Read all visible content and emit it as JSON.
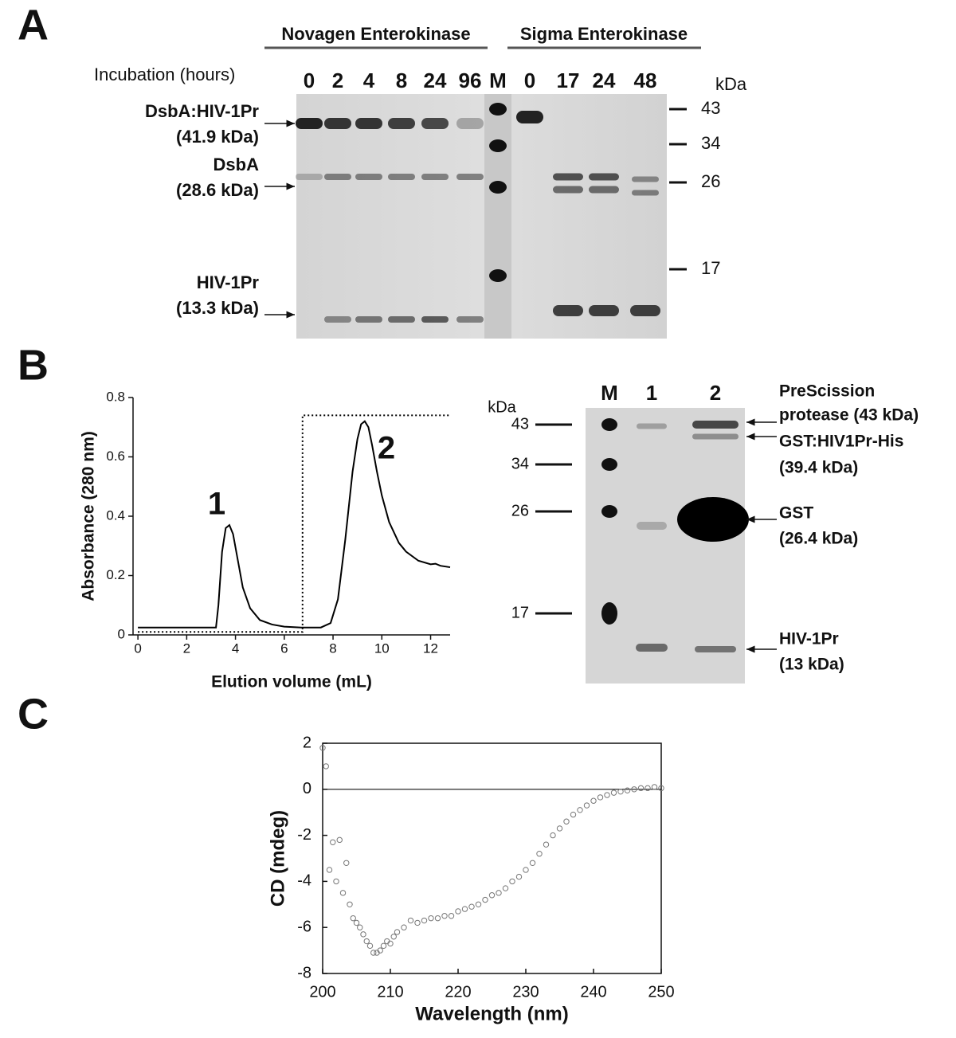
{
  "panel_a": {
    "letter": "A",
    "groups": [
      "Novagen Enterokinase",
      "Sigma Enterokinase"
    ],
    "incubation_label": "Incubation (hours)",
    "lanes": [
      "0",
      "2",
      "4",
      "8",
      "24",
      "96",
      "M",
      "0",
      "17",
      "24",
      "48"
    ],
    "kda": "kDa",
    "markers": [
      "43",
      "34",
      "26",
      "17"
    ],
    "bands": [
      {
        "name": "DsbA:HIV-1Pr",
        "size": "(41.9 kDa)"
      },
      {
        "name": "DsbA",
        "size": "(28.6 kDa)"
      },
      {
        "name": "HIV-1Pr",
        "size": "(13.3 kDa)"
      }
    ]
  },
  "panel_b": {
    "letter": "B",
    "gel": {
      "kda": "kDa",
      "lanes": [
        "M",
        "1",
        "2"
      ],
      "markers": [
        "43",
        "34",
        "26",
        "17"
      ],
      "labels": [
        "PreScission",
        "protease (43 kDa)",
        "GST:HIV1Pr-His",
        "(39.4 kDa)",
        "GST",
        "(26.4 kDa)",
        "HIV-1Pr",
        "(13 kDa)"
      ]
    }
  },
  "panel_c": {
    "letter": "C"
  },
  "chart_data": [
    {
      "type": "line",
      "x_label": "Elution volume (mL)",
      "y_label": "Absorbance (280 nm)",
      "annotations": [
        "1",
        "2"
      ],
      "xlim": [
        -0.2,
        12.8
      ],
      "ylim": [
        0,
        0.8
      ],
      "xticks": [
        0,
        2,
        4,
        6,
        8,
        10,
        12
      ],
      "yticks": [
        0,
        0.2,
        0.4,
        0.6,
        0.8
      ],
      "series": [
        {
          "color": "#000000",
          "style": "solid",
          "x": [
            0,
            3.2,
            3.3,
            3.45,
            3.6,
            3.75,
            3.9,
            4.1,
            4.3,
            4.6,
            5.0,
            5.5,
            6.0,
            6.7,
            7.5,
            7.9,
            8.2,
            8.5,
            8.8,
            9.0,
            9.15,
            9.3,
            9.45,
            9.6,
            9.8,
            10.0,
            10.3,
            10.7,
            11.0,
            11.5,
            12.0,
            12.2,
            12.4,
            12.8
          ],
          "values": [
            0.025,
            0.025,
            0.1,
            0.28,
            0.36,
            0.37,
            0.34,
            0.25,
            0.16,
            0.09,
            0.05,
            0.035,
            0.028,
            0.025,
            0.025,
            0.04,
            0.12,
            0.32,
            0.55,
            0.66,
            0.71,
            0.72,
            0.7,
            0.64,
            0.55,
            0.47,
            0.38,
            0.31,
            0.28,
            0.25,
            0.238,
            0.24,
            0.233,
            0.228
          ]
        },
        {
          "color": "#000000",
          "style": "dotted",
          "x": [
            0,
            6.75,
            6.75,
            12.8
          ],
          "values": [
            0.01,
            0.01,
            0.74,
            0.74
          ]
        }
      ]
    },
    {
      "type": "scatter",
      "x_label": "Wavelength (nm)",
      "y_label": "CD (mdeg)",
      "xlim": [
        200,
        250
      ],
      "ylim": [
        -8,
        2
      ],
      "xticks": [
        200,
        210,
        220,
        230,
        240,
        250
      ],
      "yticks": [
        -8,
        -6,
        -4,
        -2,
        0,
        2
      ],
      "color": "#777777",
      "x": [
        200,
        200.5,
        201,
        201.5,
        202,
        202.5,
        203,
        203.5,
        204,
        204.5,
        205,
        205.5,
        206,
        206.5,
        207,
        207.5,
        208,
        208.5,
        209,
        209.5,
        210,
        210.5,
        211,
        212,
        213,
        214,
        215,
        216,
        217,
        218,
        219,
        220,
        221,
        222,
        223,
        224,
        225,
        226,
        227,
        228,
        229,
        230,
        231,
        232,
        233,
        234,
        235,
        236,
        237,
        238,
        239,
        240,
        241,
        242,
        243,
        244,
        245,
        246,
        247,
        248,
        249,
        250
      ],
      "values": [
        1.8,
        1.0,
        -3.5,
        -2.3,
        -4.0,
        -2.2,
        -4.5,
        -3.2,
        -5.0,
        -5.6,
        -5.8,
        -6.0,
        -6.3,
        -6.6,
        -6.8,
        -7.1,
        -7.1,
        -7.0,
        -6.8,
        -6.6,
        -6.7,
        -6.4,
        -6.2,
        -6.0,
        -5.7,
        -5.8,
        -5.7,
        -5.6,
        -5.6,
        -5.5,
        -5.5,
        -5.3,
        -5.2,
        -5.1,
        -5.0,
        -4.8,
        -4.6,
        -4.5,
        -4.3,
        -4.0,
        -3.8,
        -3.5,
        -3.2,
        -2.8,
        -2.4,
        -2.0,
        -1.7,
        -1.4,
        -1.1,
        -0.9,
        -0.7,
        -0.5,
        -0.35,
        -0.25,
        -0.15,
        -0.1,
        -0.05,
        0.0,
        0.05,
        0.05,
        0.1,
        0.05
      ]
    }
  ]
}
